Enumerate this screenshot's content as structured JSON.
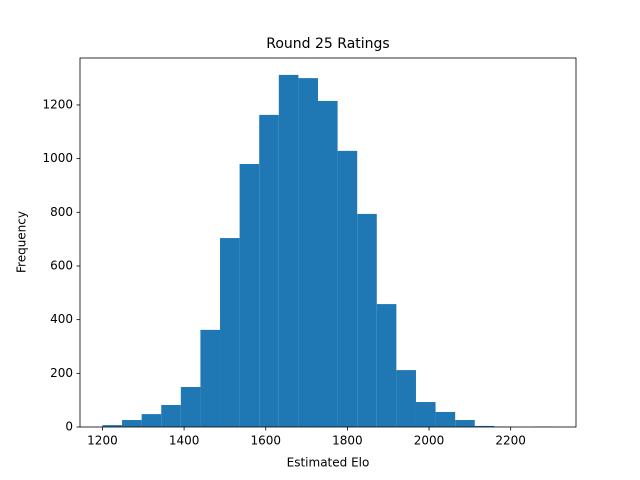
{
  "chart_data": {
    "type": "histogram",
    "title": "Round 25 Ratings",
    "x_label": "Estimated Elo",
    "y_label": "Frequency",
    "bins": [
      1200,
      1248,
      1296,
      1344,
      1392,
      1440,
      1488,
      1536,
      1584,
      1632,
      1680,
      1728,
      1776,
      1824,
      1872,
      1920,
      1968,
      2016,
      2064,
      2112,
      2160,
      2208,
      2256,
      2304
    ],
    "counts": [
      7,
      26,
      48,
      82,
      149,
      362,
      704,
      980,
      1163,
      1312,
      1300,
      1215,
      1029,
      794,
      458,
      212,
      93,
      56,
      26,
      4,
      1,
      0,
      1
    ],
    "color": "#1f77b4",
    "xlim": [
      1145,
      2360
    ],
    "ylim": [
      0,
      1375
    ],
    "xticks": [
      1200,
      1400,
      1600,
      1800,
      2000,
      2200
    ],
    "yticks": [
      0,
      200,
      400,
      600,
      800,
      1000,
      1200
    ]
  }
}
